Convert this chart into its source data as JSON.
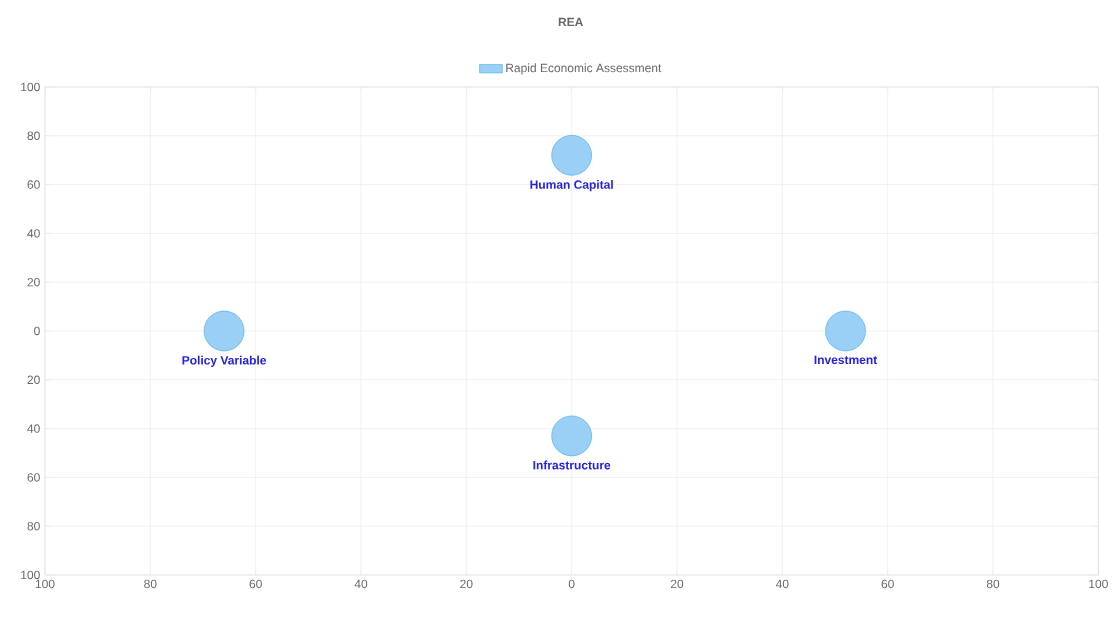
{
  "chart_data": {
    "type": "bubble",
    "title": "REA",
    "x": [
      0,
      52,
      0,
      -66
    ],
    "series": [
      {
        "name": "Rapid Economic Assessment",
        "color": "#36a2eb",
        "values": [
          72,
          0,
          -43,
          0
        ],
        "sizes": [
          1,
          1,
          1,
          1
        ]
      }
    ],
    "xlim": [
      -100,
      100
    ],
    "ylim": [
      -100,
      100
    ],
    "xticks": [
      {
        "value": -100,
        "label": "100"
      },
      {
        "value": -80,
        "label": "80"
      },
      {
        "value": -60,
        "label": "60"
      },
      {
        "value": -40,
        "label": "40"
      },
      {
        "value": -20,
        "label": "20"
      },
      0,
      20,
      40,
      60,
      80,
      100
    ],
    "yticks": [
      {
        "value": -100,
        "label": "100"
      },
      {
        "value": -80,
        "label": "80"
      },
      {
        "value": -60,
        "label": "60"
      },
      {
        "value": -40,
        "label": "40"
      },
      {
        "value": -20,
        "label": "20"
      },
      0,
      20,
      40,
      60,
      80,
      100
    ],
    "annotations": [
      {
        "text": "Human Capital",
        "x": 0,
        "y": 72
      },
      {
        "text": "Investment",
        "x": 52,
        "y": 0
      },
      {
        "text": "Infrastructure",
        "x": 0,
        "y": -43
      },
      {
        "text": "Policy Variable",
        "x": -66,
        "y": 0
      }
    ],
    "grid": true,
    "legend": "top"
  }
}
